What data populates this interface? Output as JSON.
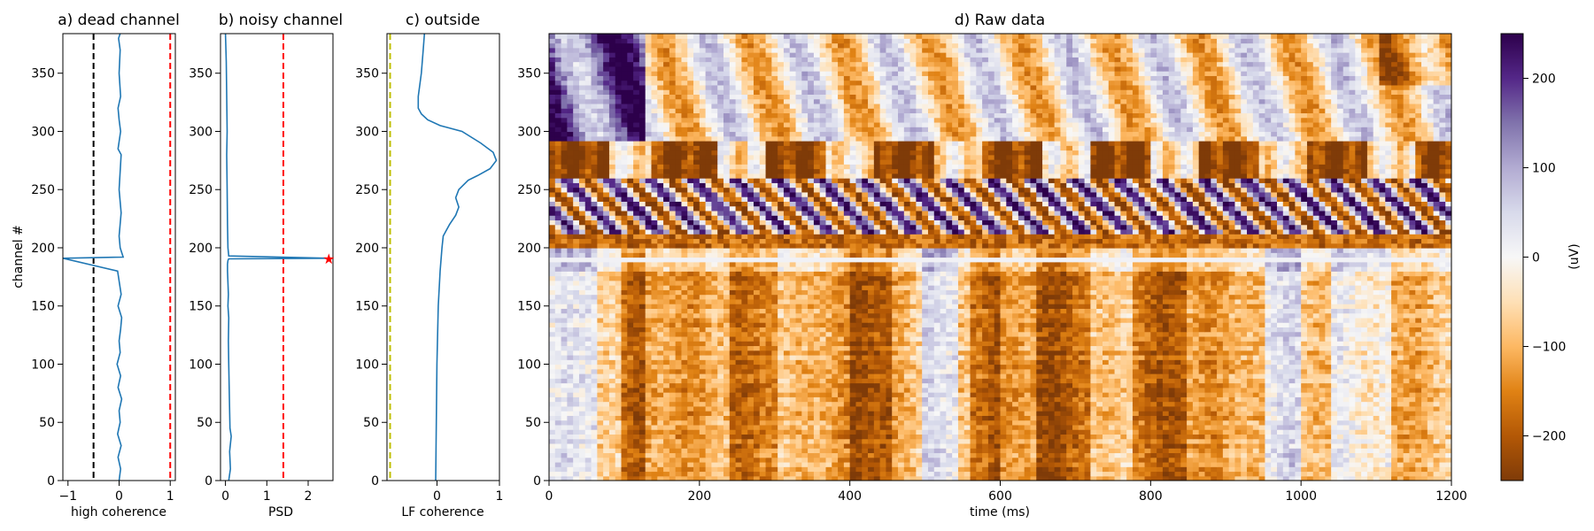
{
  "panels": [
    {
      "key": "dead",
      "title": "a) dead channel",
      "xlabel": "high coherence",
      "ylabel": "channel #",
      "xticks": [
        -1,
        0,
        1
      ],
      "xticklabels": [
        "−1",
        "0",
        "1"
      ],
      "yticks": [
        0,
        50,
        100,
        150,
        200,
        250,
        300,
        350
      ],
      "xlim": [
        -1.1,
        1.1
      ],
      "ylim": [
        0,
        384
      ],
      "thresholds": [
        {
          "x": -0.5,
          "color": "#000000"
        },
        {
          "x": 1.0,
          "color": "#ff0000"
        }
      ]
    },
    {
      "key": "noisy",
      "title": "b) noisy channel",
      "xlabel": "PSD",
      "xticks": [
        0,
        1,
        2
      ],
      "xticklabels": [
        "0",
        "1",
        "2"
      ],
      "yticks": [
        0,
        50,
        100,
        150,
        200,
        250,
        300,
        350
      ],
      "xlim": [
        -0.12,
        2.6
      ],
      "ylim": [
        0,
        384
      ],
      "thresholds": [
        {
          "x": 1.4,
          "color": "#ff0000"
        }
      ],
      "marker": {
        "x": 2.5,
        "y": 191,
        "symbol": "★",
        "color": "#ff0000"
      }
    },
    {
      "key": "outside",
      "title": "c) outside",
      "xlabel": "LF coherence",
      "xticks": [
        0,
        1
      ],
      "xticklabels": [
        "0",
        "1"
      ],
      "yticks": [
        0,
        50,
        100,
        150,
        200,
        250,
        300,
        350
      ],
      "xlim": [
        -0.8,
        1.0
      ],
      "ylim": [
        0,
        384
      ],
      "thresholds": [
        {
          "x": -0.75,
          "color": "#bfbf00"
        }
      ]
    },
    {
      "key": "raw",
      "title": "d) Raw data",
      "xlabel": "time (ms)",
      "xticks": [
        0,
        200,
        400,
        600,
        800,
        1000,
        1200
      ],
      "xticklabels": [
        "0",
        "200",
        "400",
        "600",
        "800",
        "1000",
        "1200"
      ],
      "yticks": [
        0,
        50,
        100,
        150,
        200,
        250,
        300,
        350
      ],
      "xlim": [
        0,
        1200
      ],
      "ylim": [
        0,
        384
      ]
    }
  ],
  "colorbar": {
    "label": "(uV)",
    "ticks": [
      -200,
      -100,
      0,
      100,
      200
    ],
    "ticklabels": [
      "−200",
      "−100",
      "0",
      "100",
      "200"
    ],
    "range": [
      -250,
      250
    ],
    "colormap": "PuOr",
    "colors": [
      "#7f3b08",
      "#b35806",
      "#e08214",
      "#fdb863",
      "#fee0b6",
      "#f7f7f7",
      "#d8daeb",
      "#b2abd2",
      "#8073ac",
      "#542788",
      "#2d004b"
    ]
  },
  "chart_data": [
    {
      "type": "line",
      "title": "a) dead channel",
      "xlabel": "high coherence",
      "ylabel": "channel #",
      "xlim": [
        -1.1,
        1.1
      ],
      "ylim": [
        0,
        384
      ],
      "orientation": "vertical",
      "series": [
        {
          "x": [
            0.0,
            0.03,
            -0.02,
            0.04,
            -0.03,
            0.02,
            0.0,
            0.05,
            -0.02,
            0.03,
            -0.04,
            0.02,
            0.0,
            0.03,
            0.05,
            -0.02,
            0.04,
            -0.03,
            -1.1,
            0.08,
            0.02,
            0.0,
            0.04,
            0.0,
            0.04,
            -0.02,
            0.03,
            0.0,
            -0.02,
            0.03,
            0.0,
            0.02,
            -0.01,
            0.02
          ],
          "y": [
            0,
            10,
            20,
            30,
            40,
            50,
            60,
            70,
            80,
            90,
            100,
            110,
            120,
            130,
            140,
            150,
            160,
            180,
            191,
            192,
            200,
            210,
            230,
            250,
            280,
            285,
            300,
            310,
            320,
            330,
            350,
            370,
            380,
            384
          ]
        }
      ],
      "vlines": [
        -0.5,
        1.0
      ]
    },
    {
      "type": "line",
      "title": "b) noisy channel",
      "xlabel": "PSD",
      "xlim": [
        -0.12,
        2.6
      ],
      "ylim": [
        0,
        384
      ],
      "orientation": "vertical",
      "series": [
        {
          "x": [
            0.08,
            0.12,
            0.1,
            0.14,
            0.11,
            0.1,
            0.09,
            0.08,
            0.07,
            0.08,
            0.06,
            0.07,
            0.06,
            0.05,
            0.05,
            0.06,
            0.07,
            0.08,
            2.5,
            0.08,
            0.06,
            0.05,
            0.04,
            0.03,
            0.04,
            0.03,
            0.02,
            0.0
          ],
          "y": [
            0,
            10,
            25,
            38,
            45,
            60,
            80,
            100,
            120,
            140,
            150,
            160,
            170,
            180,
            186,
            189,
            190,
            190.5,
            191,
            193,
            200,
            220,
            250,
            280,
            300,
            330,
            360,
            384
          ]
        }
      ],
      "vlines": [
        1.4
      ],
      "marker": {
        "x": 2.5,
        "y": 191
      }
    },
    {
      "type": "line",
      "title": "c) outside",
      "xlabel": "LF coherence",
      "xlim": [
        -0.8,
        1.0
      ],
      "ylim": [
        0,
        384
      ],
      "orientation": "vertical",
      "series": [
        {
          "x": [
            -0.02,
            -0.01,
            0.0,
            0.02,
            0.05,
            0.08,
            0.1,
            0.15,
            0.2,
            0.3,
            0.35,
            0.3,
            0.35,
            0.5,
            0.65,
            0.85,
            0.95,
            0.9,
            0.7,
            0.4,
            0.05,
            -0.15,
            -0.25,
            -0.3,
            -0.3,
            -0.25,
            -0.22,
            -0.2
          ],
          "y": [
            0,
            50,
            100,
            150,
            180,
            200,
            210,
            215,
            220,
            228,
            235,
            243,
            250,
            258,
            262,
            268,
            275,
            282,
            290,
            300,
            305,
            310,
            315,
            320,
            330,
            350,
            370,
            384
          ]
        }
      ],
      "vlines": [
        -0.75
      ]
    },
    {
      "type": "heatmap",
      "title": "d) Raw data",
      "xlabel": "time (ms)",
      "ylabel": "",
      "xlim": [
        0,
        1200
      ],
      "ylim": [
        0,
        384
      ],
      "colorbar_label": "(uV)",
      "value_range": [
        -250,
        250
      ],
      "colormap": "PuOr"
    }
  ]
}
